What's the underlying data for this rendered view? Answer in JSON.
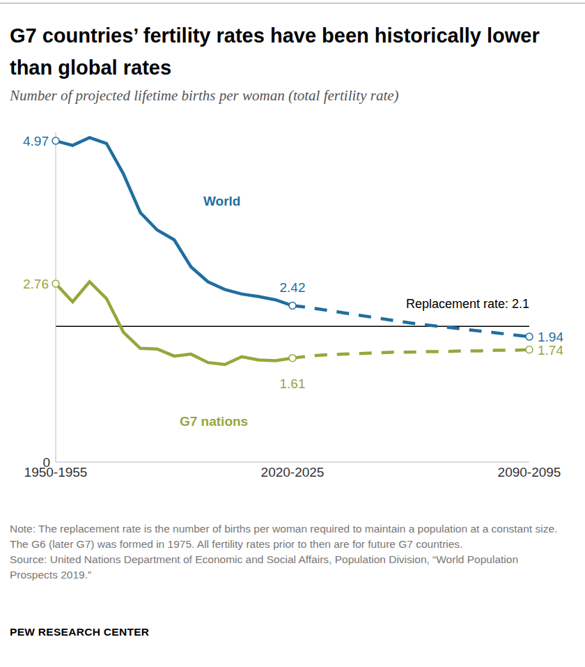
{
  "chart_data": {
    "type": "line",
    "title": "G7 countries’ fertility rates have been historically lower than global rates",
    "subtitle": "Number of projected lifetime births per woman (total fertility rate)",
    "categories": [
      "1950-1955",
      null,
      null,
      null,
      null,
      null,
      null,
      null,
      null,
      null,
      null,
      null,
      null,
      null,
      "2020-2025",
      null,
      null,
      null,
      null,
      null,
      null,
      null,
      null,
      null,
      null,
      null,
      null,
      null,
      "2090-2095"
    ],
    "projected_from": "2020-2025",
    "series": [
      {
        "name": "World",
        "color": "#1f6ea0",
        "line_style": "solid",
        "marker": "circle",
        "values": [
          4.97,
          4.9,
          5.02,
          4.93,
          4.46,
          3.86,
          3.59,
          3.44,
          3.02,
          2.79,
          2.67,
          2.6,
          2.56,
          2.51,
          2.42,
          2.39,
          2.35,
          2.31,
          2.27,
          2.23,
          2.19,
          2.15,
          2.12,
          2.09,
          2.06,
          2.03,
          2.0,
          1.97,
          1.94
        ],
        "value_labels": [
          "4.97",
          null,
          null,
          null,
          null,
          null,
          null,
          null,
          null,
          null,
          null,
          null,
          null,
          null,
          "2.42",
          null,
          null,
          null,
          null,
          null,
          null,
          null,
          null,
          null,
          null,
          null,
          null,
          null,
          "1.94"
        ]
      },
      {
        "name": "G7 nations",
        "color": "#97a63c",
        "line_style": "solid",
        "marker": "circle",
        "values": [
          2.76,
          2.48,
          2.79,
          2.53,
          2.01,
          1.76,
          1.75,
          1.64,
          1.67,
          1.54,
          1.51,
          1.63,
          1.58,
          1.57,
          1.61,
          1.64,
          1.66,
          1.67,
          1.68,
          1.69,
          1.7,
          1.7,
          1.71,
          1.71,
          1.72,
          1.72,
          1.73,
          1.73,
          1.74
        ],
        "value_labels": [
          "2.76",
          null,
          null,
          null,
          null,
          null,
          null,
          null,
          null,
          null,
          null,
          null,
          null,
          null,
          "1.61",
          null,
          null,
          null,
          null,
          null,
          null,
          null,
          null,
          null,
          null,
          null,
          null,
          null,
          "1.74"
        ]
      }
    ],
    "reference_line": {
      "value": 2.1,
      "label": "Replacement rate: 2.1"
    },
    "ylim": [
      0,
      5.1
    ],
    "yticks": [
      0
    ],
    "grid": false,
    "data_labels": true,
    "note": "Note: The replacement rate is the number of births per woman required to maintain a population at a constant size. The G6 (later G7) was formed in 1975. All fertility rates prior to then are for future G7 countries.",
    "source": "Source: United Nations Department of Economic and Social Affairs, Population Division, “World Population Prospects 2019.”",
    "credit": "PEW RESEARCH CENTER"
  }
}
